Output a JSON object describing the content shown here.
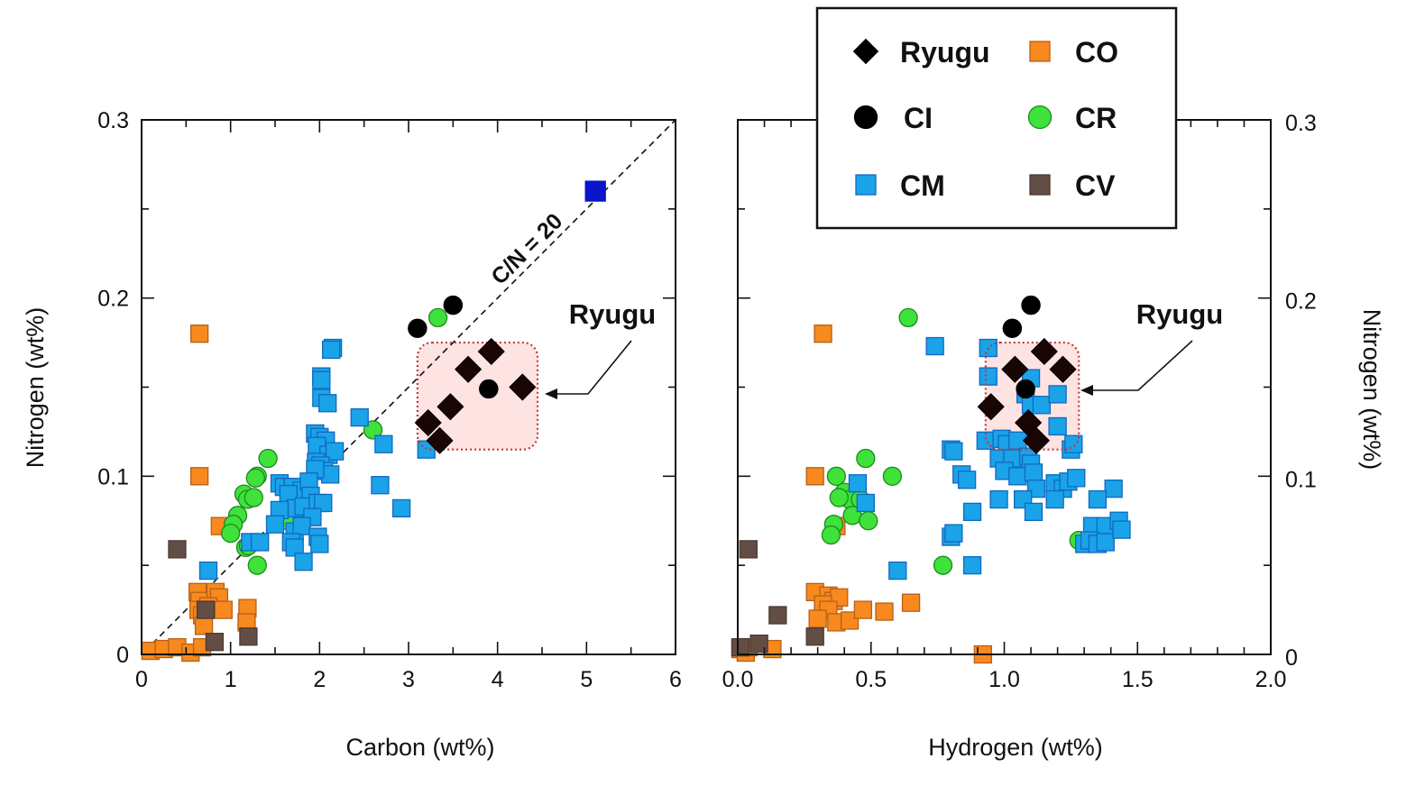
{
  "chart_data": [
    {
      "type": "scatter",
      "title": "",
      "xlabel": "Carbon (wt%)",
      "ylabel": "Nitrogen (wt%)",
      "xlim": [
        0,
        6
      ],
      "ylim": [
        0,
        0.3
      ],
      "xticks": [
        "0",
        "1",
        "2",
        "3",
        "4",
        "5",
        "6"
      ],
      "yticks": [
        "0",
        "0.1",
        "0.2",
        "0.3"
      ],
      "grid": false,
      "reference_line": {
        "label": "C/N = 20",
        "slope": 0.05,
        "style": "dashed"
      },
      "highlight_box": {
        "label": "Ryugu",
        "x_range": [
          3.1,
          4.45
        ],
        "y_range": [
          0.115,
          0.175
        ]
      },
      "series": [
        {
          "name": "CO",
          "marker": "square",
          "points": [
            [
              0.65,
              0.18
            ],
            [
              0.65,
              0.1
            ],
            [
              0.88,
              0.072
            ],
            [
              0.63,
              0.035
            ],
            [
              0.65,
              0.03
            ],
            [
              0.64,
              0.025
            ],
            [
              0.68,
              0.022
            ],
            [
              0.7,
              0.016
            ],
            [
              0.83,
              0.035
            ],
            [
              0.87,
              0.032
            ],
            [
              0.75,
              0.027
            ],
            [
              0.92,
              0.025
            ],
            [
              1.19,
              0.026
            ],
            [
              1.18,
              0.018
            ],
            [
              0.1,
              0.002
            ],
            [
              0.25,
              0.003
            ],
            [
              0.4,
              0.004
            ],
            [
              0.55,
              0.001
            ],
            [
              0.68,
              0.004
            ]
          ]
        },
        {
          "name": "CV",
          "marker": "square",
          "points": [
            [
              0.4,
              0.059
            ],
            [
              0.72,
              0.025
            ],
            [
              0.82,
              0.007
            ],
            [
              1.2,
              0.01
            ]
          ]
        },
        {
          "name": "CR",
          "marker": "circle",
          "points": [
            [
              1.42,
              0.11
            ],
            [
              1.3,
              0.1
            ],
            [
              1.28,
              0.099
            ],
            [
              1.15,
              0.09
            ],
            [
              1.19,
              0.087
            ],
            [
              1.26,
              0.088
            ],
            [
              1.08,
              0.078
            ],
            [
              1.03,
              0.073
            ],
            [
              1.0,
              0.068
            ],
            [
              1.17,
              0.06
            ],
            [
              1.3,
              0.05
            ],
            [
              1.65,
              0.075
            ],
            [
              2.6,
              0.126
            ],
            [
              3.33,
              0.189
            ],
            [
              1.2,
              0.061
            ]
          ]
        },
        {
          "name": "CM",
          "marker": "square",
          "points": [
            [
              2.15,
              0.172
            ],
            [
              2.13,
              0.171
            ],
            [
              2.02,
              0.156
            ],
            [
              2.02,
              0.154
            ],
            [
              2.02,
              0.144
            ],
            [
              2.09,
              0.141
            ],
            [
              1.95,
              0.124
            ],
            [
              2.0,
              0.122
            ],
            [
              2.07,
              0.12
            ],
            [
              1.97,
              0.117
            ],
            [
              2.1,
              0.112
            ],
            [
              2.17,
              0.114
            ],
            [
              1.96,
              0.108
            ],
            [
              2.01,
              0.106
            ],
            [
              2.05,
              0.103
            ],
            [
              2.12,
              0.101
            ],
            [
              1.95,
              0.104
            ],
            [
              1.55,
              0.096
            ],
            [
              1.6,
              0.094
            ],
            [
              1.7,
              0.094
            ],
            [
              1.8,
              0.092
            ],
            [
              1.88,
              0.097
            ],
            [
              1.9,
              0.089
            ],
            [
              1.65,
              0.09
            ],
            [
              1.73,
              0.082
            ],
            [
              1.82,
              0.083
            ],
            [
              1.98,
              0.085
            ],
            [
              2.04,
              0.085
            ],
            [
              1.55,
              0.081
            ],
            [
              1.92,
              0.077
            ],
            [
              1.5,
              0.073
            ],
            [
              1.72,
              0.069
            ],
            [
              1.8,
              0.072
            ],
            [
              1.98,
              0.066
            ],
            [
              2.0,
              0.062
            ],
            [
              1.68,
              0.063
            ],
            [
              1.72,
              0.06
            ],
            [
              1.82,
              0.052
            ],
            [
              1.22,
              0.063
            ],
            [
              1.33,
              0.063
            ],
            [
              2.45,
              0.133
            ],
            [
              2.72,
              0.118
            ],
            [
              2.68,
              0.095
            ],
            [
              2.92,
              0.082
            ],
            [
              3.2,
              0.115
            ],
            [
              0.75,
              0.047
            ]
          ]
        },
        {
          "name": "CM (high)",
          "marker": "square",
          "color": "#0a14c8",
          "points": [
            [
              5.1,
              0.26
            ]
          ]
        },
        {
          "name": "CI",
          "marker": "circle",
          "points": [
            [
              3.1,
              0.183
            ],
            [
              3.5,
              0.196
            ],
            [
              3.9,
              0.149
            ]
          ]
        },
        {
          "name": "Ryugu",
          "marker": "diamond",
          "points": [
            [
              3.93,
              0.17
            ],
            [
              3.67,
              0.16
            ],
            [
              4.28,
              0.15
            ],
            [
              3.47,
              0.139
            ],
            [
              3.22,
              0.13
            ],
            [
              3.35,
              0.12
            ]
          ]
        }
      ]
    },
    {
      "type": "scatter",
      "title": "",
      "xlabel": "Hydrogen (wt%)",
      "ylabel": "Nitrogen (wt%)",
      "xlim": [
        0,
        2.0
      ],
      "ylim": [
        0,
        0.3
      ],
      "xticks": [
        "0.0",
        "0.5",
        "1.0",
        "1.5",
        "2.0"
      ],
      "yticks": [
        "0",
        "0.1",
        "0.2",
        "0.3"
      ],
      "y_axis_side": "right",
      "grid": false,
      "highlight_box": {
        "label": "Ryugu",
        "x_range": [
          0.93,
          1.28
        ],
        "y_range": [
          0.115,
          0.175
        ]
      },
      "series": [
        {
          "name": "CO",
          "marker": "square",
          "points": [
            [
              0.32,
              0.18
            ],
            [
              0.29,
              0.1
            ],
            [
              0.37,
              0.072
            ],
            [
              0.29,
              0.035
            ],
            [
              0.34,
              0.033
            ],
            [
              0.36,
              0.03
            ],
            [
              0.38,
              0.032
            ],
            [
              0.32,
              0.028
            ],
            [
              0.34,
              0.025
            ],
            [
              0.3,
              0.02
            ],
            [
              0.37,
              0.018
            ],
            [
              0.42,
              0.019
            ],
            [
              0.47,
              0.025
            ],
            [
              0.55,
              0.024
            ],
            [
              0.65,
              0.029
            ],
            [
              0.01,
              0.003
            ],
            [
              0.03,
              0.001
            ],
            [
              0.04,
              0.004
            ],
            [
              0.13,
              0.003
            ],
            [
              0.92,
              0.0
            ]
          ]
        },
        {
          "name": "CV",
          "marker": "square",
          "points": [
            [
              0.04,
              0.059
            ],
            [
              0.15,
              0.022
            ],
            [
              0.29,
              0.01
            ],
            [
              0.08,
              0.006
            ],
            [
              0.01,
              0.004
            ]
          ]
        },
        {
          "name": "CR",
          "marker": "circle",
          "points": [
            [
              0.64,
              0.189
            ],
            [
              0.48,
              0.11
            ],
            [
              0.37,
              0.1
            ],
            [
              0.58,
              0.1
            ],
            [
              0.4,
              0.091
            ],
            [
              0.42,
              0.087
            ],
            [
              0.46,
              0.087
            ],
            [
              0.38,
              0.088
            ],
            [
              0.43,
              0.078
            ],
            [
              0.49,
              0.075
            ],
            [
              0.36,
              0.073
            ],
            [
              0.35,
              0.067
            ],
            [
              0.77,
              0.05
            ],
            [
              1.28,
              0.064
            ],
            [
              1.02,
              0.119
            ]
          ]
        },
        {
          "name": "CM",
          "marker": "square",
          "points": [
            [
              0.74,
              0.173
            ],
            [
              0.94,
              0.172
            ],
            [
              0.94,
              0.156
            ],
            [
              1.1,
              0.155
            ],
            [
              1.08,
              0.146
            ],
            [
              1.1,
              0.14
            ],
            [
              1.14,
              0.14
            ],
            [
              1.2,
              0.146
            ],
            [
              1.2,
              0.128
            ],
            [
              1.25,
              0.115
            ],
            [
              1.26,
              0.118
            ],
            [
              0.93,
              0.12
            ],
            [
              0.99,
              0.121
            ],
            [
              1.01,
              0.118
            ],
            [
              1.05,
              0.12
            ],
            [
              0.8,
              0.115
            ],
            [
              0.81,
              0.114
            ],
            [
              0.84,
              0.101
            ],
            [
              0.86,
              0.098
            ],
            [
              0.98,
              0.11
            ],
            [
              1.03,
              0.11
            ],
            [
              1.09,
              0.111
            ],
            [
              1.1,
              0.107
            ],
            [
              1.0,
              0.103
            ],
            [
              1.05,
              0.1
            ],
            [
              1.11,
              0.102
            ],
            [
              1.12,
              0.093
            ],
            [
              1.19,
              0.096
            ],
            [
              1.22,
              0.093
            ],
            [
              1.24,
              0.097
            ],
            [
              1.27,
              0.099
            ],
            [
              1.19,
              0.087
            ],
            [
              0.98,
              0.087
            ],
            [
              1.07,
              0.087
            ],
            [
              1.11,
              0.08
            ],
            [
              1.41,
              0.093
            ],
            [
              1.35,
              0.087
            ],
            [
              1.33,
              0.072
            ],
            [
              1.38,
              0.072
            ],
            [
              1.43,
              0.075
            ],
            [
              1.3,
              0.062
            ],
            [
              1.32,
              0.064
            ],
            [
              1.35,
              0.062
            ],
            [
              1.38,
              0.063
            ],
            [
              1.44,
              0.07
            ],
            [
              0.8,
              0.066
            ],
            [
              0.81,
              0.068
            ],
            [
              0.88,
              0.05
            ],
            [
              0.45,
              0.096
            ],
            [
              0.48,
              0.085
            ],
            [
              0.88,
              0.08
            ],
            [
              0.6,
              0.047
            ]
          ]
        },
        {
          "name": "CI",
          "marker": "circle",
          "points": [
            [
              1.03,
              0.183
            ],
            [
              1.1,
              0.196
            ],
            [
              1.08,
              0.149
            ]
          ]
        },
        {
          "name": "Ryugu",
          "marker": "diamond",
          "points": [
            [
              1.15,
              0.17
            ],
            [
              1.04,
              0.16
            ],
            [
              1.22,
              0.16
            ],
            [
              0.95,
              0.139
            ],
            [
              1.09,
              0.13
            ],
            [
              1.12,
              0.12
            ]
          ]
        }
      ]
    }
  ],
  "legend": {
    "placement": "top-center",
    "entries": [
      {
        "label": "Ryugu",
        "marker": "diamond",
        "color": "#000000"
      },
      {
        "label": "CO",
        "marker": "square",
        "color": "#f7891f"
      },
      {
        "label": "CI",
        "marker": "circle",
        "color": "#000000"
      },
      {
        "label": "CR",
        "marker": "circle",
        "color": "#3ee23a"
      },
      {
        "label": "CM",
        "marker": "square",
        "color": "#1aa3e8"
      },
      {
        "label": "CV",
        "marker": "square",
        "color": "#634e45"
      }
    ]
  },
  "colors": {
    "CO": "#f7891f",
    "CO_edge": "#b85f15",
    "CV": "#634e45",
    "CV_edge": "#4a3a33",
    "CR": "#3ee23a",
    "CR_edge": "#1e8a1e",
    "CM": "#1aa3e8",
    "CM_edge": "#1268c0",
    "CM (high)": "#0a14c8",
    "CM (high)_edge": "#0a14c8",
    "CI": "#000000",
    "CI_edge": "#000000",
    "Ryugu": "#1a0505",
    "Ryugu_edge": "#000000",
    "box_fill": "#fde3e2",
    "box_stroke": "#c0393b"
  },
  "annotations": {
    "left_ryugu": "Ryugu",
    "right_ryugu": "Ryugu",
    "cn_line": "C/N = 20"
  }
}
